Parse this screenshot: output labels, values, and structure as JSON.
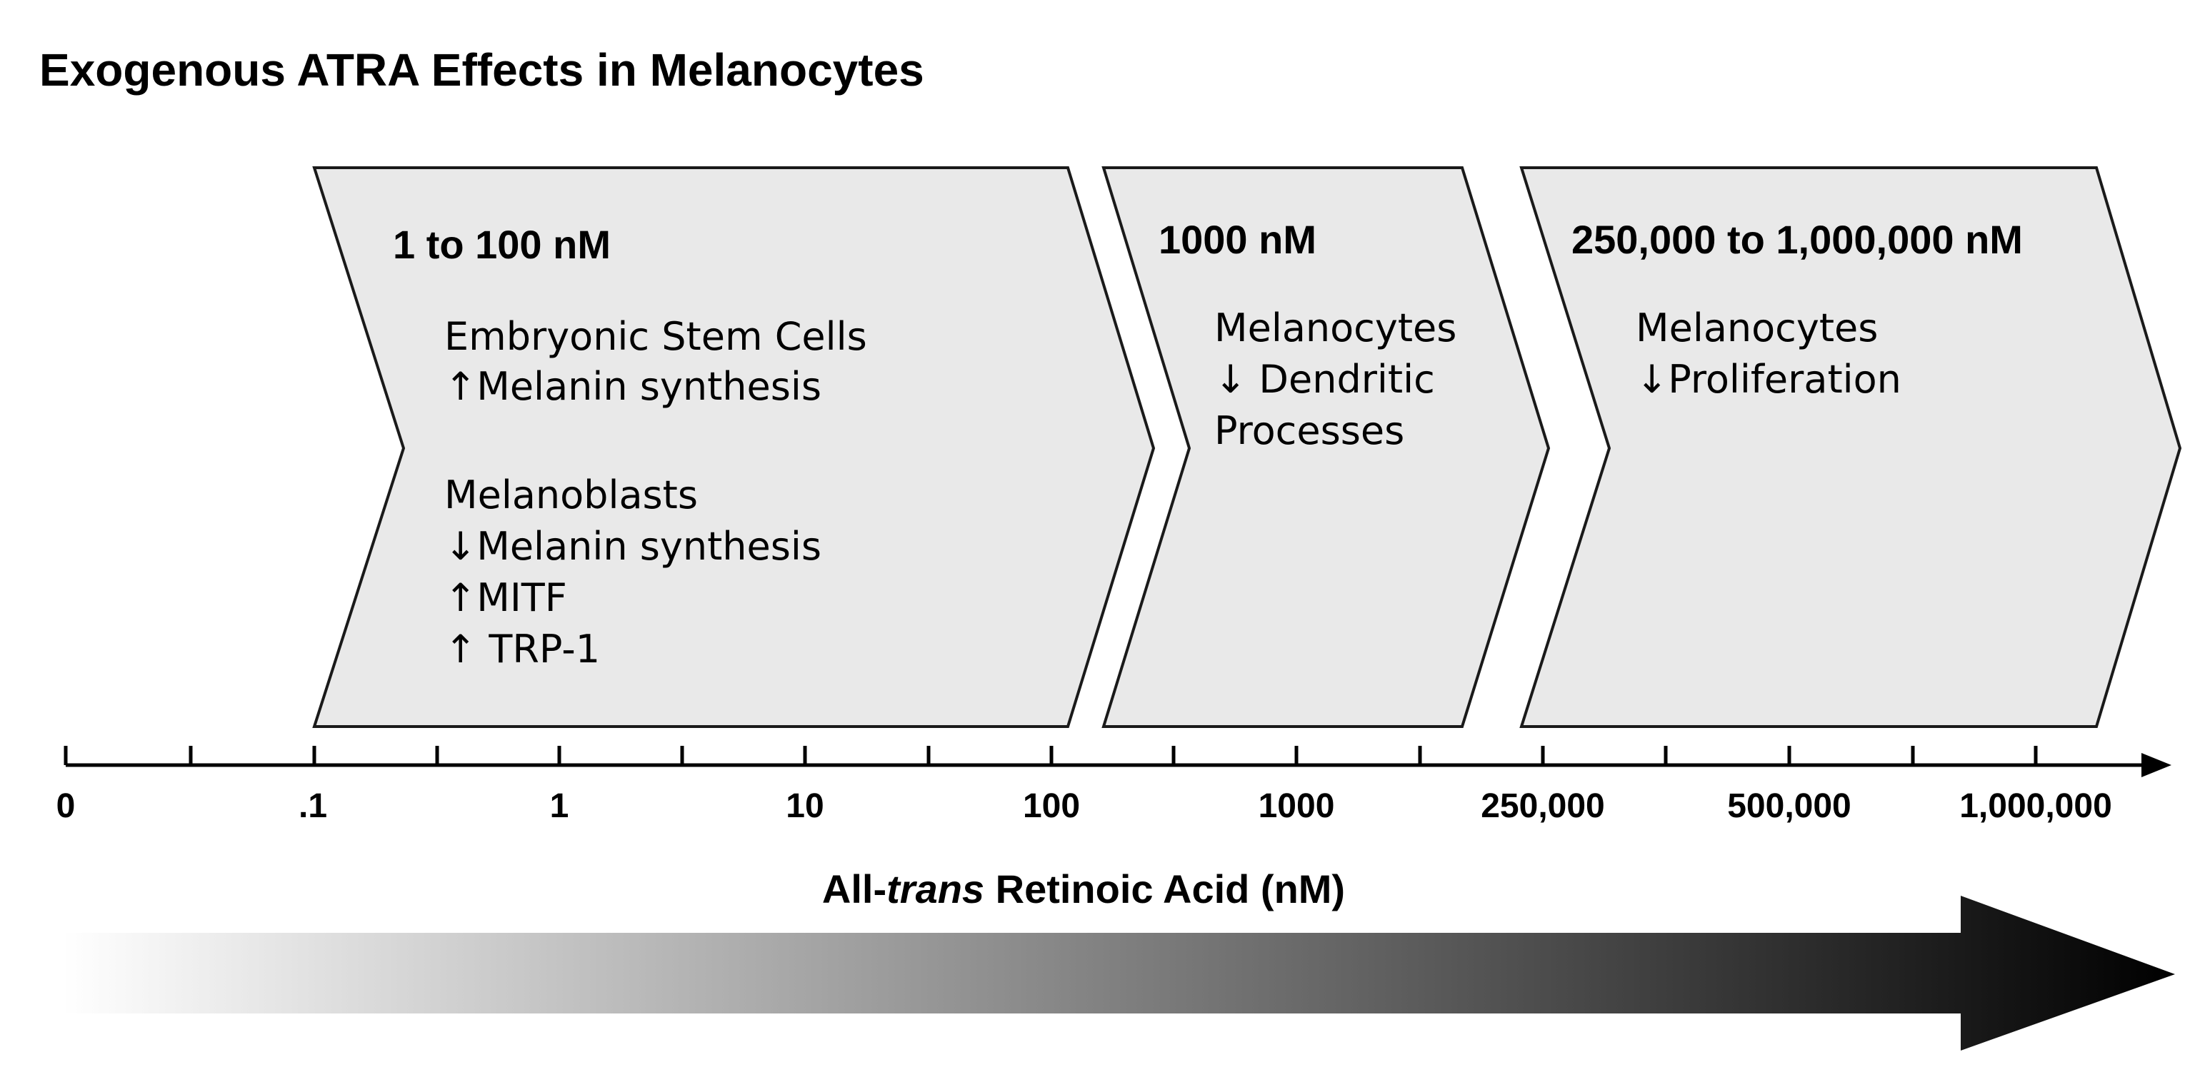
{
  "title": "Exogenous ATRA Effects in Melanocytes",
  "panels": [
    {
      "range": "1 to 100 nM",
      "groups": [
        {
          "lines": [
            "Embryonic Stem Cells",
            "↑Melanin synthesis"
          ]
        },
        {
          "lines": [
            "Melanoblasts",
            "↓Melanin synthesis",
            "↑MITF",
            "↑ TRP-1"
          ]
        }
      ]
    },
    {
      "range": "1000 nM",
      "groups": [
        {
          "lines": [
            "Melanocytes",
            "↓ Dendritic",
            "Processes"
          ]
        }
      ]
    },
    {
      "range": "250,000 to 1,000,000 nM",
      "groups": [
        {
          "lines": [
            "Melanocytes",
            "↓Proliferation"
          ]
        }
      ]
    }
  ],
  "axis": {
    "tick_labels": [
      "0",
      ".1",
      "1",
      "10",
      "100",
      "1000",
      "250,000",
      "500,000",
      "1,000,000"
    ],
    "title_prefix": "All-",
    "title_italic": "trans",
    "title_suffix": " Retinoic Acid (nM)"
  },
  "gradient_arrow": {
    "start_color": "#ffffff",
    "end_color": "#000000"
  },
  "colors": {
    "panel_fill": "#e9e9e9",
    "outline": "#1a1a1a"
  }
}
